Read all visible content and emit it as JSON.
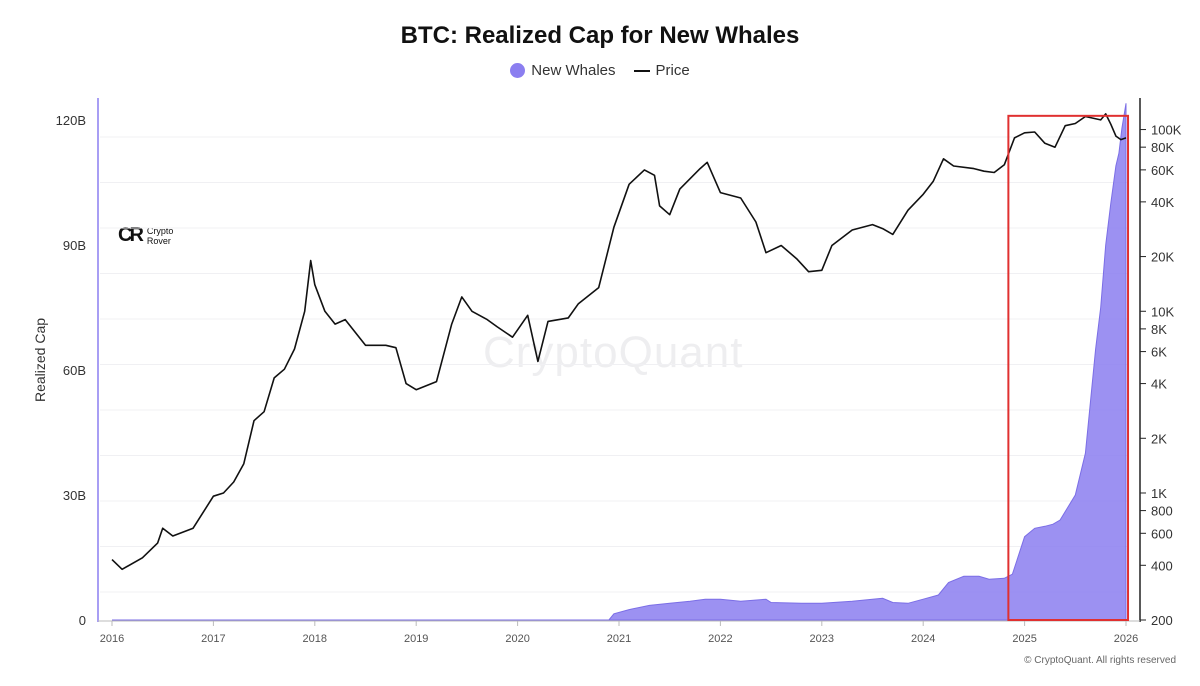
{
  "chart_data": {
    "type": "area",
    "title": "BTC: Realized Cap for New Whales",
    "ylabel": "Realized Cap",
    "legend_position": "top-center",
    "grid": true,
    "x_ticks": [
      "2016",
      "2017",
      "2018",
      "2019",
      "2020",
      "2021",
      "2022",
      "2023",
      "2024",
      "2025",
      "2026"
    ],
    "y_left_ticks": [
      {
        "label": "0",
        "value": 0
      },
      {
        "label": "30B",
        "value": 30
      },
      {
        "label": "60B",
        "value": 60
      },
      {
        "label": "90B",
        "value": 90
      },
      {
        "label": "120B",
        "value": 120
      }
    ],
    "y_left_lim": [
      0,
      120
    ],
    "y_right_scale": "log",
    "y_right_ticks": [
      {
        "label": "200",
        "value": 200
      },
      {
        "label": "400",
        "value": 400
      },
      {
        "label": "600",
        "value": 600
      },
      {
        "label": "800",
        "value": 800
      },
      {
        "label": "1K",
        "value": 1000
      },
      {
        "label": "2K",
        "value": 2000
      },
      {
        "label": "4K",
        "value": 4000
      },
      {
        "label": "6K",
        "value": 6000
      },
      {
        "label": "8K",
        "value": 8000
      },
      {
        "label": "10K",
        "value": 10000
      },
      {
        "label": "20K",
        "value": 20000
      },
      {
        "label": "40K",
        "value": 40000
      },
      {
        "label": "60K",
        "value": 60000
      },
      {
        "label": "80K",
        "value": 80000
      },
      {
        "label": "100K",
        "value": 100000
      }
    ],
    "y_right_lim": [
      200,
      140000
    ],
    "series": [
      {
        "name": "New Whales",
        "kind": "area",
        "axis": "left",
        "color": "#8b7ef0",
        "points": [
          [
            2016.0,
            0
          ],
          [
            2020.9,
            0
          ],
          [
            2020.95,
            1.5
          ],
          [
            2021.1,
            2.5
          ],
          [
            2021.3,
            3.5
          ],
          [
            2021.5,
            4
          ],
          [
            2021.7,
            4.5
          ],
          [
            2021.85,
            5
          ],
          [
            2022.0,
            5
          ],
          [
            2022.2,
            4.5
          ],
          [
            2022.45,
            5
          ],
          [
            2022.5,
            4.2
          ],
          [
            2022.8,
            4
          ],
          [
            2023.0,
            4
          ],
          [
            2023.3,
            4.5
          ],
          [
            2023.5,
            5
          ],
          [
            2023.6,
            5.2
          ],
          [
            2023.7,
            4.2
          ],
          [
            2023.85,
            4
          ],
          [
            2024.0,
            5
          ],
          [
            2024.15,
            6
          ],
          [
            2024.25,
            9
          ],
          [
            2024.4,
            10.5
          ],
          [
            2024.55,
            10.5
          ],
          [
            2024.65,
            9.8
          ],
          [
            2024.8,
            10
          ],
          [
            2024.88,
            11
          ],
          [
            2025.0,
            20
          ],
          [
            2025.1,
            22
          ],
          [
            2025.2,
            22.5
          ],
          [
            2025.28,
            23
          ],
          [
            2025.35,
            24
          ],
          [
            2025.5,
            30
          ],
          [
            2025.6,
            40
          ],
          [
            2025.7,
            65
          ],
          [
            2025.75,
            75
          ],
          [
            2025.8,
            90
          ],
          [
            2025.85,
            100
          ],
          [
            2025.9,
            109
          ],
          [
            2025.93,
            112
          ],
          [
            2025.96,
            118
          ],
          [
            2026.0,
            124
          ]
        ]
      },
      {
        "name": "Price",
        "kind": "line",
        "axis": "right",
        "color": "#111111",
        "points": [
          [
            2016.0,
            430
          ],
          [
            2016.1,
            380
          ],
          [
            2016.3,
            440
          ],
          [
            2016.45,
            530
          ],
          [
            2016.5,
            640
          ],
          [
            2016.6,
            580
          ],
          [
            2016.8,
            640
          ],
          [
            2017.0,
            960
          ],
          [
            2017.1,
            1000
          ],
          [
            2017.2,
            1150
          ],
          [
            2017.3,
            1450
          ],
          [
            2017.4,
            2500
          ],
          [
            2017.5,
            2800
          ],
          [
            2017.6,
            4300
          ],
          [
            2017.7,
            4800
          ],
          [
            2017.8,
            6200
          ],
          [
            2017.9,
            10000
          ],
          [
            2017.96,
            19000
          ],
          [
            2018.0,
            14000
          ],
          [
            2018.1,
            10000
          ],
          [
            2018.2,
            8500
          ],
          [
            2018.3,
            9000
          ],
          [
            2018.5,
            6500
          ],
          [
            2018.7,
            6500
          ],
          [
            2018.8,
            6300
          ],
          [
            2018.9,
            4000
          ],
          [
            2019.0,
            3700
          ],
          [
            2019.2,
            4100
          ],
          [
            2019.35,
            8500
          ],
          [
            2019.45,
            12000
          ],
          [
            2019.55,
            10000
          ],
          [
            2019.7,
            9000
          ],
          [
            2019.8,
            8200
          ],
          [
            2019.95,
            7200
          ],
          [
            2020.1,
            9500
          ],
          [
            2020.2,
            5300
          ],
          [
            2020.3,
            8800
          ],
          [
            2020.5,
            9200
          ],
          [
            2020.6,
            11000
          ],
          [
            2020.8,
            13500
          ],
          [
            2020.95,
            29000
          ],
          [
            2021.1,
            50000
          ],
          [
            2021.25,
            60000
          ],
          [
            2021.35,
            56000
          ],
          [
            2021.4,
            38000
          ],
          [
            2021.5,
            34000
          ],
          [
            2021.6,
            47000
          ],
          [
            2021.8,
            61000
          ],
          [
            2021.87,
            66000
          ],
          [
            2022.0,
            45000
          ],
          [
            2022.2,
            42000
          ],
          [
            2022.35,
            31000
          ],
          [
            2022.45,
            21000
          ],
          [
            2022.6,
            23000
          ],
          [
            2022.75,
            19500
          ],
          [
            2022.87,
            16500
          ],
          [
            2023.0,
            16800
          ],
          [
            2023.1,
            23000
          ],
          [
            2023.3,
            28000
          ],
          [
            2023.5,
            30000
          ],
          [
            2023.6,
            28500
          ],
          [
            2023.7,
            26500
          ],
          [
            2023.85,
            36000
          ],
          [
            2024.0,
            44000
          ],
          [
            2024.1,
            52000
          ],
          [
            2024.2,
            69000
          ],
          [
            2024.3,
            63000
          ],
          [
            2024.5,
            61000
          ],
          [
            2024.6,
            59000
          ],
          [
            2024.7,
            58000
          ],
          [
            2024.8,
            64000
          ],
          [
            2024.9,
            90000
          ],
          [
            2025.0,
            96000
          ],
          [
            2025.1,
            97000
          ],
          [
            2025.2,
            84000
          ],
          [
            2025.3,
            80000
          ],
          [
            2025.4,
            105000
          ],
          [
            2025.5,
            108000
          ],
          [
            2025.6,
            118000
          ],
          [
            2025.75,
            113000
          ],
          [
            2025.8,
            122000
          ],
          [
            2025.85,
            107000
          ],
          [
            2025.9,
            92000
          ],
          [
            2025.95,
            88000
          ],
          [
            2026.0,
            90000
          ]
        ]
      }
    ],
    "annotations": [
      {
        "type": "rect",
        "x_from": 2024.84,
        "x_to": 2026.02,
        "y_from": 0,
        "y_to": 121,
        "color": "#e03030"
      }
    ]
  },
  "watermark": "CryptoQuant",
  "logo": {
    "mark": "CR",
    "line1": "Crypto",
    "line2": "Rover"
  },
  "copyright": "© CryptoQuant. All rights reserved"
}
